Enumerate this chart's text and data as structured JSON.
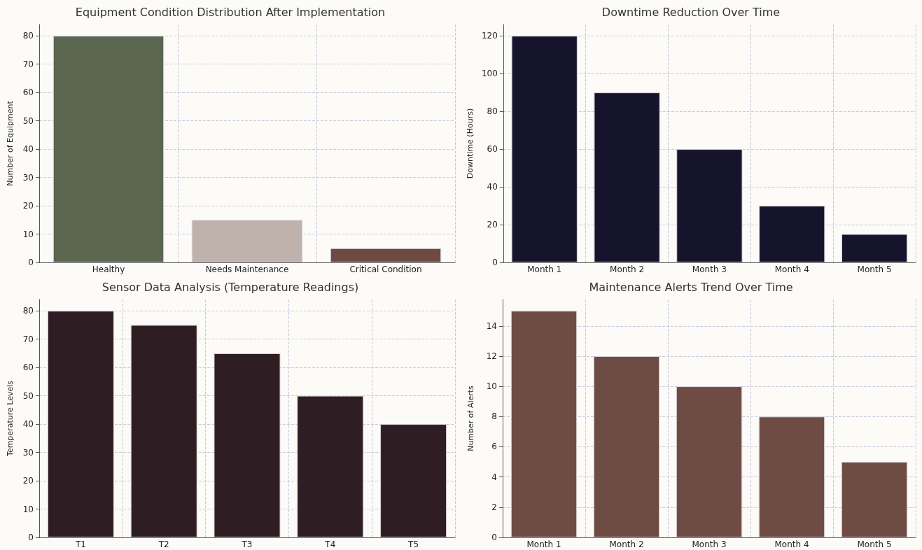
{
  "chart_data": [
    {
      "type": "bar",
      "title": "Equipment Condition Distribution After Implementation",
      "ylabel": "Number of Equipment",
      "categories": [
        "Healthy",
        "Needs Maintenance",
        "Critical Condition"
      ],
      "values": [
        80,
        15,
        5
      ],
      "colors": [
        "#5a6650",
        "#bfb1ab",
        "#6e4a42"
      ],
      "ylim": [
        0,
        84
      ],
      "yticks": [
        0,
        10,
        20,
        30,
        40,
        50,
        60,
        70,
        80
      ],
      "grid": true
    },
    {
      "type": "bar",
      "title": "Downtime Reduction Over Time",
      "ylabel": "Downtime (Hours)",
      "categories": [
        "Month 1",
        "Month 2",
        "Month 3",
        "Month 4",
        "Month 5"
      ],
      "values": [
        120,
        90,
        60,
        30,
        15
      ],
      "color": "#16142c",
      "ylim": [
        0,
        126
      ],
      "yticks": [
        0,
        20,
        40,
        60,
        80,
        100,
        120
      ],
      "grid": true
    },
    {
      "type": "bar",
      "title": "Sensor Data Analysis (Temperature Readings)",
      "ylabel": "Temperature Levels",
      "categories": [
        "T1",
        "T2",
        "T3",
        "T4",
        "T5"
      ],
      "values": [
        80,
        75,
        65,
        50,
        40
      ],
      "color": "#2e1e24",
      "ylim": [
        0,
        84
      ],
      "yticks": [
        0,
        10,
        20,
        30,
        40,
        50,
        60,
        70,
        80
      ],
      "grid": true
    },
    {
      "type": "bar",
      "title": "Maintenance Alerts Trend Over Time",
      "ylabel": "Number of Alerts",
      "categories": [
        "Month 1",
        "Month 2",
        "Month 3",
        "Month 4",
        "Month 5"
      ],
      "values": [
        15,
        12,
        10,
        8,
        5
      ],
      "color": "#6e4b43",
      "ylim": [
        0,
        15.75
      ],
      "yticks": [
        0,
        2,
        4,
        6,
        8,
        10,
        12,
        14
      ],
      "grid": true
    }
  ]
}
